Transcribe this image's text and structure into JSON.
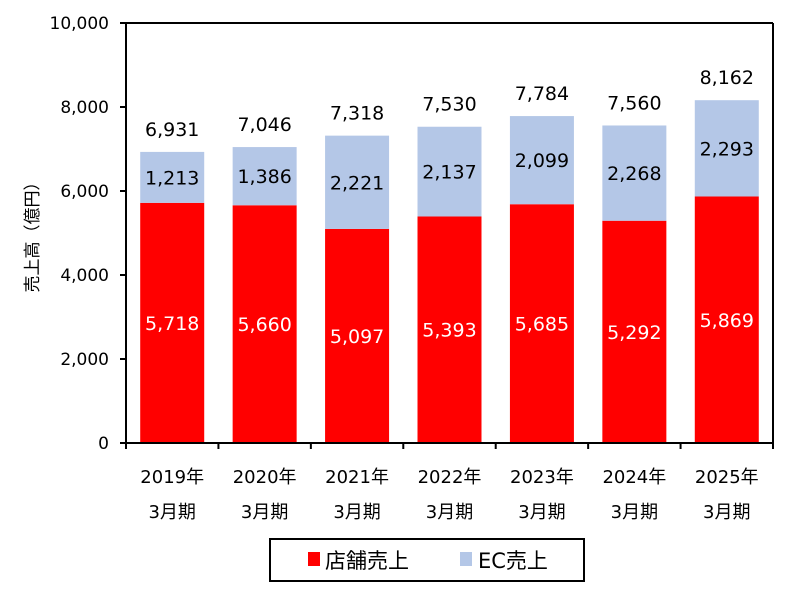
{
  "chart_data": {
    "type": "bar",
    "stacked": true,
    "title": "",
    "xlabel": "",
    "ylabel": "売上高（億円）",
    "ylim": [
      0,
      10000
    ],
    "yticks": [
      0,
      2000,
      4000,
      6000,
      8000,
      10000
    ],
    "ytick_labels": [
      "0",
      "2,000",
      "4,000",
      "6,000",
      "8,000",
      "10,000"
    ],
    "grid": false,
    "categories": [
      {
        "line1": "2019年",
        "line2": "3月期"
      },
      {
        "line1": "2020年",
        "line2": "3月期"
      },
      {
        "line1": "2021年",
        "line2": "3月期"
      },
      {
        "line1": "2022年",
        "line2": "3月期"
      },
      {
        "line1": "2023年",
        "line2": "3月期"
      },
      {
        "line1": "2024年",
        "line2": "3月期"
      },
      {
        "line1": "2025年",
        "line2": "3月期"
      }
    ],
    "series": [
      {
        "name": "店舗売上",
        "color": "#ff0000",
        "values": [
          5718,
          5660,
          5097,
          5393,
          5685,
          5292,
          5869
        ],
        "labels": [
          "5,718",
          "5,660",
          "5,097",
          "5,393",
          "5,685",
          "5,292",
          "5,869"
        ]
      },
      {
        "name": "EC売上",
        "color": "#b4c7e7",
        "values": [
          1213,
          1386,
          2221,
          2137,
          2099,
          2268,
          2293
        ],
        "labels": [
          "1,213",
          "1,386",
          "2,221",
          "2,137",
          "2,099",
          "2,268",
          "2,293"
        ]
      }
    ],
    "totals": [
      6931,
      7046,
      7318,
      7530,
      7784,
      7560,
      8162
    ],
    "total_labels": [
      "6,931",
      "7,046",
      "7,318",
      "7,530",
      "7,784",
      "7,560",
      "8,162"
    ],
    "legend": {
      "position": "bottom-center",
      "items": [
        "店舗売上",
        "EC売上"
      ]
    }
  }
}
